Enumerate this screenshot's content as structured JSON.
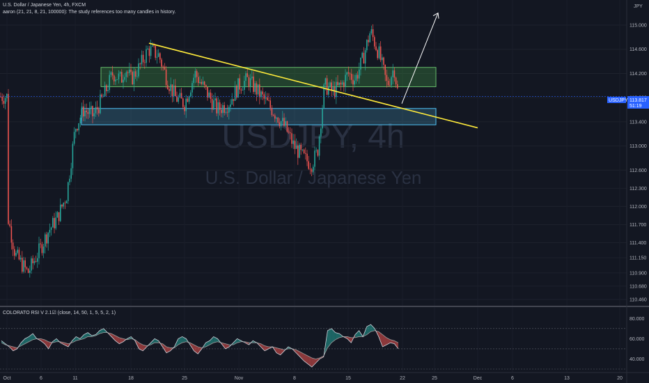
{
  "header": {
    "title": "U.S. Dollar / Japanese Yen, 4h, FXCM",
    "study": "aaron (21, 21, 8, 21, 100000): The study references too many candles in history."
  },
  "watermark": {
    "symbol": "USDJPY, 4h",
    "name": "U.S. Dollar / Japanese Yen"
  },
  "price_tag": {
    "symbol": "USDJPY",
    "value": "113.817",
    "countdown": "51:19",
    "color": "#2962ff"
  },
  "indicator_label": "COLORATO RSI V 2.1☑ (close, 14, 50, 1, 5, 5, 2, 1)",
  "colors": {
    "up": "#26a69a",
    "down": "#ef5350",
    "trendline": "#ffeb3b",
    "resistance_zone": "#4caf50",
    "support_zone": "#4aa3c9",
    "arrow": "#ffffff"
  },
  "chart_data": [
    {
      "type": "candlestick",
      "title": "U.S. Dollar / Japanese Yen, 4h, FXCM",
      "currency_label": "JPY",
      "ylim": [
        110.46,
        115.3
      ],
      "y_ticks": [
        "115.000",
        "114.600",
        "114.200",
        "113.800",
        "113.400",
        "113.000",
        "112.600",
        "112.300",
        "112.000",
        "111.700",
        "111.400",
        "111.150",
        "110.900",
        "110.680",
        "110.460"
      ],
      "x_ticks": [
        "Oct",
        "6",
        "11",
        "18",
        "25",
        "Nov",
        "8",
        "15",
        "22",
        "25",
        "Dec",
        "6",
        "13",
        "20"
      ],
      "anchors": [
        [
          "Oct",
          111.9
        ],
        [
          "3",
          111.2
        ],
        [
          "5",
          110.9
        ],
        [
          "6",
          111.3
        ],
        [
          "7",
          111.6
        ],
        [
          "8",
          111.8
        ],
        [
          "10",
          112.2
        ],
        [
          "11",
          113.3
        ],
        [
          "12",
          113.6
        ],
        [
          "13",
          113.5
        ],
        [
          "14",
          113.8
        ],
        [
          "15",
          114.2
        ],
        [
          "16",
          114.1
        ],
        [
          "17",
          114.3
        ],
        [
          "18",
          114.1
        ],
        [
          "19",
          114.3
        ],
        [
          "20",
          114.6
        ],
        [
          "21",
          114.5
        ],
        [
          "22",
          114.1
        ],
        [
          "23",
          113.8
        ],
        [
          "25",
          113.7
        ],
        [
          "26",
          114.2
        ],
        [
          "27",
          113.9
        ],
        [
          "28",
          113.6
        ],
        [
          "29",
          113.7
        ],
        [
          "Nov",
          114.0
        ],
        [
          "2",
          114.1
        ],
        [
          "3",
          113.9
        ],
        [
          "4",
          113.7
        ],
        [
          "5",
          113.5
        ],
        [
          "6",
          113.3
        ],
        [
          "7",
          113.0
        ],
        [
          "8",
          112.8
        ],
        [
          "9",
          112.7
        ],
        [
          "10",
          112.9
        ],
        [
          "11",
          114.0
        ],
        [
          "12",
          113.9
        ],
        [
          "13",
          114.0
        ],
        [
          "15",
          114.2
        ],
        [
          "16",
          114.1
        ],
        [
          "17",
          114.4
        ],
        [
          "18",
          114.9
        ],
        [
          "19",
          114.5
        ],
        [
          "20",
          114.0
        ],
        [
          "21",
          114.3
        ],
        [
          "22",
          113.817
        ]
      ],
      "trendline": {
        "from": [
          "20",
          114.7
        ],
        "to": [
          "25",
          113.3
        ]
      },
      "resistance_zone": [
        113.98,
        114.3
      ],
      "support_zone": [
        113.35,
        113.62
      ],
      "projection": {
        "from": [
          "22",
          113.7
        ],
        "to": [
          "25",
          115.2
        ]
      },
      "last_price": 113.817
    },
    {
      "type": "line",
      "title": "COLORATO RSI V 2.1",
      "ylim": [
        30,
        85
      ],
      "y_ticks": [
        "80.000",
        "60.000",
        "40.000"
      ],
      "levels": [
        70,
        50,
        30
      ],
      "values": [
        58,
        55,
        52,
        48,
        50,
        56,
        60,
        62,
        65,
        60,
        58,
        55,
        50,
        57,
        60,
        56,
        54,
        52,
        58,
        62,
        60,
        64,
        66,
        63,
        64,
        68,
        70,
        66,
        62,
        58,
        55,
        57,
        60,
        62,
        58,
        50,
        48,
        52,
        56,
        60,
        58,
        52,
        46,
        48,
        52,
        60,
        62,
        60,
        54,
        48,
        45,
        50,
        56,
        58,
        62,
        60,
        55,
        50,
        52,
        56,
        60,
        58,
        56,
        54,
        58,
        56,
        52,
        48,
        50,
        52,
        46,
        44,
        48,
        52,
        50,
        46,
        42,
        38,
        35,
        32,
        36,
        40,
        42,
        68,
        70,
        66,
        65,
        62,
        60,
        56,
        64,
        68,
        62,
        72,
        74,
        70,
        62,
        52,
        54,
        56,
        55,
        50
      ],
      "signal": [
        56,
        54,
        53,
        52,
        51,
        53,
        55,
        57,
        59,
        60,
        60,
        59,
        57,
        56,
        57,
        57,
        56,
        55,
        56,
        58,
        59,
        60,
        62,
        62,
        63,
        65,
        66,
        66,
        65,
        63,
        61,
        60,
        59,
        60,
        59,
        56,
        54,
        53,
        54,
        56,
        56,
        55,
        52,
        51,
        51,
        54,
        56,
        57,
        56,
        54,
        52,
        51,
        52,
        54,
        56,
        57,
        56,
        55,
        54,
        54,
        56,
        57,
        57,
        56,
        56,
        56,
        55,
        53,
        52,
        52,
        51,
        50,
        49,
        50,
        50,
        49,
        47,
        45,
        43,
        41,
        40,
        41,
        43,
        51,
        56,
        59,
        61,
        62,
        62,
        61,
        61,
        62,
        62,
        64,
        67,
        68,
        67,
        64,
        61,
        59,
        58,
        56
      ]
    }
  ]
}
